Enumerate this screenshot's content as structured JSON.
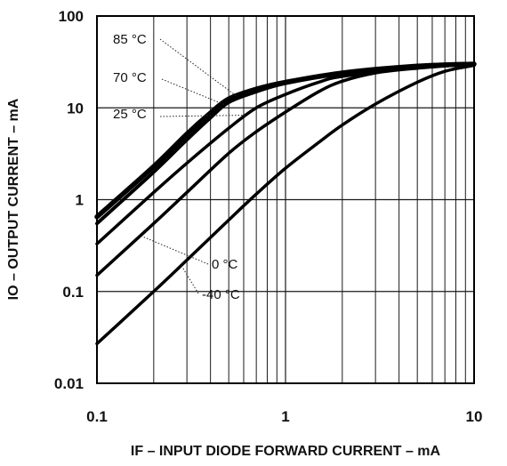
{
  "chart_data": {
    "type": "line",
    "xlabel": "IF – INPUT DIODE FORWARD CURRENT – mA",
    "ylabel": "IO – OUTPUT CURRENT – mA",
    "x_scale": "log",
    "y_scale": "log",
    "xlim": [
      0.1,
      10
    ],
    "ylim": [
      0.01,
      100
    ],
    "grid": true,
    "x_ticks": [
      {
        "value": 0.1,
        "label": "0.1"
      },
      {
        "value": 1,
        "label": "1"
      },
      {
        "value": 10,
        "label": "10"
      }
    ],
    "y_ticks": [
      {
        "value": 0.01,
        "label": "0.01"
      },
      {
        "value": 0.1,
        "label": "0.1"
      },
      {
        "value": 1,
        "label": "1"
      },
      {
        "value": 10,
        "label": "10"
      },
      {
        "value": 100,
        "label": "100"
      }
    ],
    "series": [
      {
        "name": "85 °C",
        "x": [
          0.1,
          0.2,
          0.3,
          0.4,
          0.5,
          0.7,
          1,
          2,
          5,
          10
        ],
        "y": [
          0.65,
          2.3,
          5.2,
          8.8,
          12.5,
          16,
          19,
          24,
          28.5,
          30
        ]
      },
      {
        "name": "70 °C",
        "x": [
          0.1,
          0.2,
          0.3,
          0.4,
          0.5,
          0.7,
          1,
          2,
          5,
          10
        ],
        "y": [
          0.55,
          2.0,
          4.5,
          7.8,
          11.5,
          15,
          18.5,
          23.5,
          28,
          30
        ]
      },
      {
        "name": "25 °C",
        "x": [
          0.1,
          0.2,
          0.3,
          0.5,
          0.7,
          1,
          1.5,
          2,
          5,
          10
        ],
        "y": [
          0.33,
          1.2,
          2.5,
          6.0,
          10,
          14,
          19,
          22,
          27.5,
          30
        ]
      },
      {
        "name": "0 °C",
        "x": [
          0.1,
          0.2,
          0.3,
          0.5,
          0.7,
          1,
          1.5,
          2,
          3,
          5,
          10
        ],
        "y": [
          0.15,
          0.55,
          1.2,
          3.2,
          5.5,
          9,
          15,
          19.5,
          24,
          27,
          30
        ]
      },
      {
        "name": "-40 °C",
        "x": [
          0.1,
          0.2,
          0.3,
          0.5,
          0.7,
          1,
          1.5,
          2,
          3,
          5,
          7,
          10
        ],
        "y": [
          0.027,
          0.1,
          0.22,
          0.6,
          1.15,
          2.2,
          4.2,
          6.5,
          11,
          19,
          25,
          29
        ]
      }
    ],
    "annotations": [
      {
        "text": "85 °C",
        "series": "85 °C"
      },
      {
        "text": "70 °C",
        "series": "70 °C"
      },
      {
        "text": "25 °C",
        "series": "25 °C"
      },
      {
        "text": "0 °C",
        "series": "0 °C"
      },
      {
        "text": "-40 °C",
        "series": "-40 °C"
      }
    ]
  }
}
